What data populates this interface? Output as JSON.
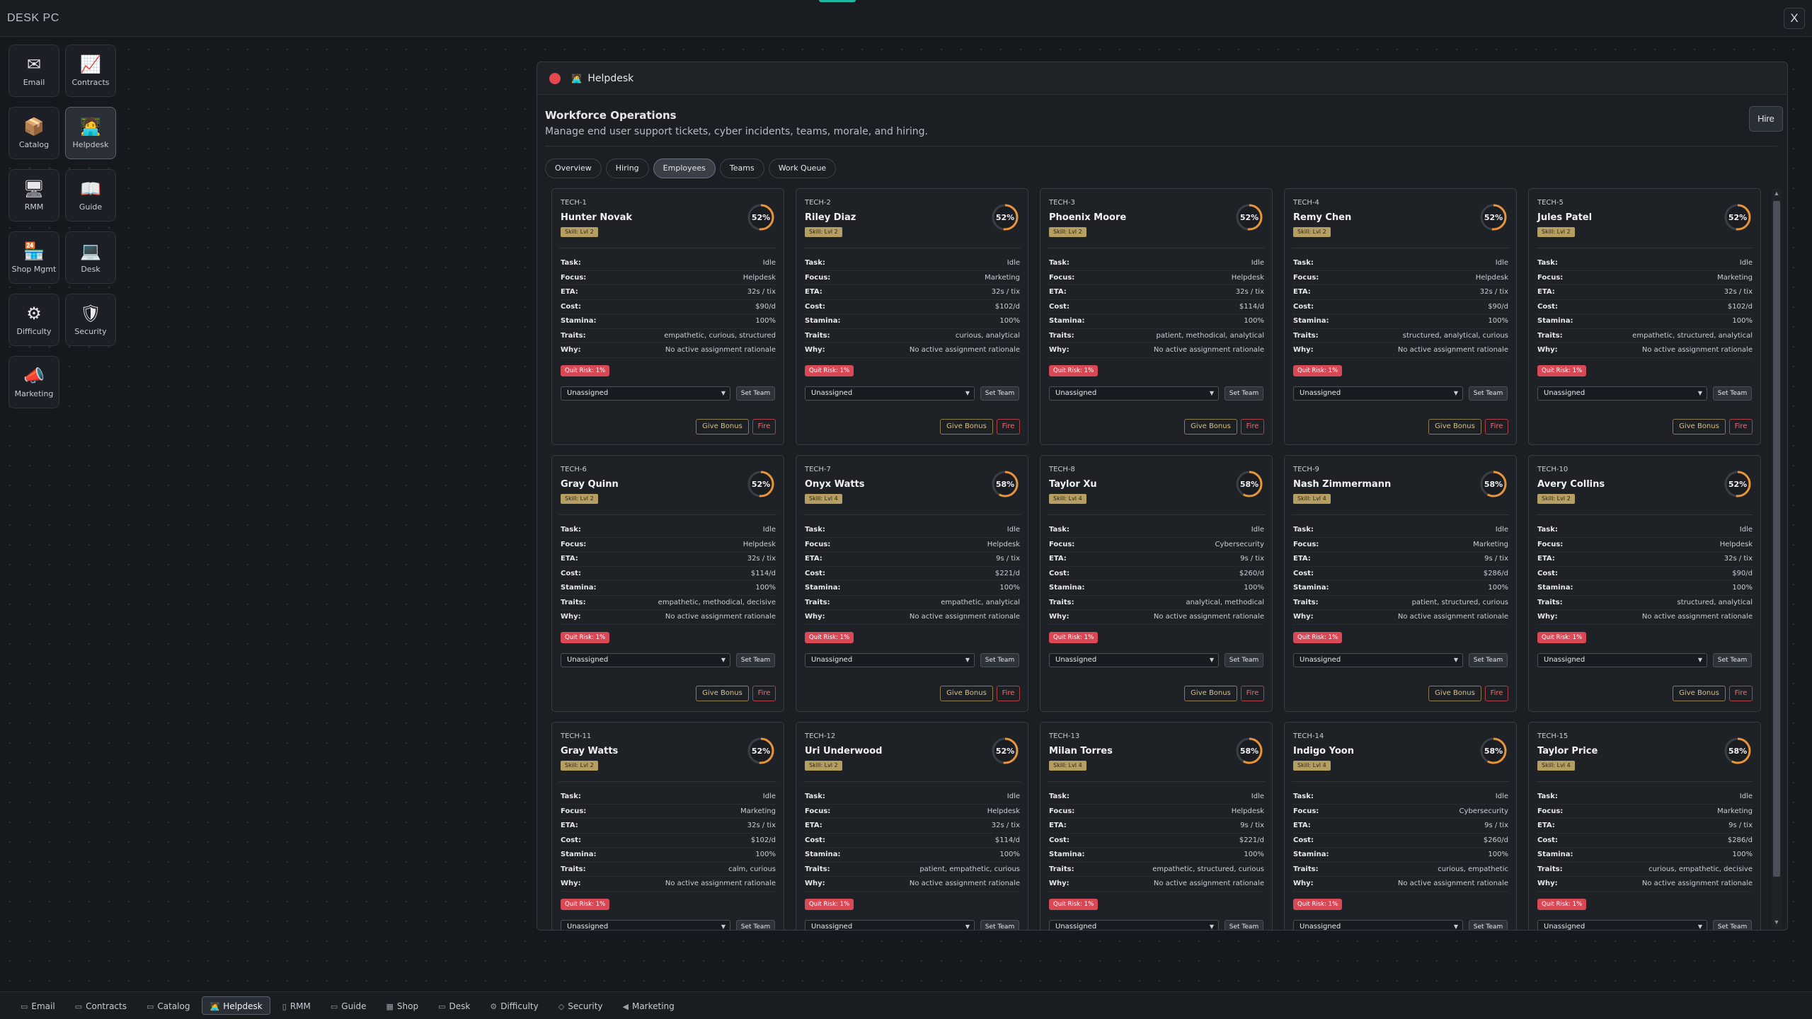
{
  "topbar": {
    "title": "DESK PC",
    "close_label": "X"
  },
  "desktop_icons": [
    {
      "label": "Email",
      "glyph": "✉",
      "icon": "email-icon"
    },
    {
      "label": "Contracts",
      "glyph": "📈",
      "icon": "contracts-icon"
    },
    {
      "label": "Catalog",
      "glyph": "📦",
      "icon": "catalog-icon"
    },
    {
      "label": "Helpdesk",
      "glyph": "🧑‍💻",
      "icon": "helpdesk-icon",
      "active": true
    },
    {
      "label": "RMM",
      "glyph": "🖥",
      "icon": "rmm-icon"
    },
    {
      "label": "Guide",
      "glyph": "📖",
      "icon": "guide-icon"
    },
    {
      "label": "Shop Mgmt",
      "glyph": "🏪",
      "icon": "shop-icon"
    },
    {
      "label": "Desk",
      "glyph": "💻",
      "icon": "desk-icon"
    },
    {
      "label": "Difficulty",
      "glyph": "⚙",
      "icon": "gear-icon"
    },
    {
      "label": "Security",
      "glyph": "🛡",
      "icon": "shield-icon"
    },
    {
      "label": "Marketing",
      "glyph": "📣",
      "icon": "megaphone-icon"
    }
  ],
  "window": {
    "title": "Helpdesk",
    "title_glyph": "🧑‍💻",
    "heading": "Workforce Operations",
    "subheading": "Manage end user support tickets, cyber incidents, teams, morale, and hiring.",
    "hire_label": "Hire",
    "tabs": [
      "Overview",
      "Hiring",
      "Employees",
      "Teams",
      "Work Queue"
    ],
    "active_tab": "Employees"
  },
  "field_labels": {
    "task": "Task:",
    "focus": "Focus:",
    "eta": "ETA:",
    "cost": "Cost:",
    "stamina": "Stamina:",
    "traits": "Traits:",
    "why": "Why:"
  },
  "card_buttons": {
    "set_team": "Set Team",
    "give_bonus": "Give Bonus",
    "fire": "Fire"
  },
  "accent_colors": {
    "ring": "#e8943a",
    "skill": "#b59e62",
    "quit": "#d94855",
    "fire": "#ef6b73"
  },
  "employees": [
    {
      "id": "TECH-1",
      "name": "Hunter Novak",
      "skill": "Skill: Lvl 2",
      "pct": "52%",
      "pct_value": 52,
      "task": "Idle",
      "focus": "Helpdesk",
      "eta": "32s / tix",
      "cost": "$90/d",
      "stamina": "100%",
      "traits": "empathetic, curious, structured",
      "why": "No active assignment rationale",
      "quit": "Quit Risk: 1%",
      "team": "Unassigned"
    },
    {
      "id": "TECH-2",
      "name": "Riley Diaz",
      "skill": "Skill: Lvl 2",
      "pct": "52%",
      "pct_value": 52,
      "task": "Idle",
      "focus": "Marketing",
      "eta": "32s / tix",
      "cost": "$102/d",
      "stamina": "100%",
      "traits": "curious, analytical",
      "why": "No active assignment rationale",
      "quit": "Quit Risk: 1%",
      "team": "Unassigned"
    },
    {
      "id": "TECH-3",
      "name": "Phoenix Moore",
      "skill": "Skill: Lvl 2",
      "pct": "52%",
      "pct_value": 52,
      "task": "Idle",
      "focus": "Helpdesk",
      "eta": "32s / tix",
      "cost": "$114/d",
      "stamina": "100%",
      "traits": "patient, methodical, analytical",
      "why": "No active assignment rationale",
      "quit": "Quit Risk: 1%",
      "team": "Unassigned"
    },
    {
      "id": "TECH-4",
      "name": "Remy Chen",
      "skill": "Skill: Lvl 2",
      "pct": "52%",
      "pct_value": 52,
      "task": "Idle",
      "focus": "Helpdesk",
      "eta": "32s / tix",
      "cost": "$90/d",
      "stamina": "100%",
      "traits": "structured, analytical, curious",
      "why": "No active assignment rationale",
      "quit": "Quit Risk: 1%",
      "team": "Unassigned"
    },
    {
      "id": "TECH-5",
      "name": "Jules Patel",
      "skill": "Skill: Lvl 2",
      "pct": "52%",
      "pct_value": 52,
      "task": "Idle",
      "focus": "Marketing",
      "eta": "32s / tix",
      "cost": "$102/d",
      "stamina": "100%",
      "traits": "empathetic, structured, analytical",
      "why": "No active assignment rationale",
      "quit": "Quit Risk: 1%",
      "team": "Unassigned"
    },
    {
      "id": "TECH-6",
      "name": "Gray Quinn",
      "skill": "Skill: Lvl 2",
      "pct": "52%",
      "pct_value": 52,
      "task": "Idle",
      "focus": "Helpdesk",
      "eta": "32s / tix",
      "cost": "$114/d",
      "stamina": "100%",
      "traits": "empathetic, methodical, decisive",
      "why": "No active assignment rationale",
      "quit": "Quit Risk: 1%",
      "team": "Unassigned"
    },
    {
      "id": "TECH-7",
      "name": "Onyx Watts",
      "skill": "Skill: Lvl 4",
      "pct": "58%",
      "pct_value": 58,
      "task": "Idle",
      "focus": "Helpdesk",
      "eta": "9s / tix",
      "cost": "$221/d",
      "stamina": "100%",
      "traits": "empathetic, analytical",
      "why": "No active assignment rationale",
      "quit": "Quit Risk: 1%",
      "team": "Unassigned"
    },
    {
      "id": "TECH-8",
      "name": "Taylor Xu",
      "skill": "Skill: Lvl 4",
      "pct": "58%",
      "pct_value": 58,
      "task": "Idle",
      "focus": "Cybersecurity",
      "eta": "9s / tix",
      "cost": "$260/d",
      "stamina": "100%",
      "traits": "analytical, methodical",
      "why": "No active assignment rationale",
      "quit": "Quit Risk: 1%",
      "team": "Unassigned"
    },
    {
      "id": "TECH-9",
      "name": "Nash Zimmermann",
      "skill": "Skill: Lvl 4",
      "pct": "58%",
      "pct_value": 58,
      "task": "Idle",
      "focus": "Marketing",
      "eta": "9s / tix",
      "cost": "$286/d",
      "stamina": "100%",
      "traits": "patient, structured, curious",
      "why": "No active assignment rationale",
      "quit": "Quit Risk: 1%",
      "team": "Unassigned"
    },
    {
      "id": "TECH-10",
      "name": "Avery Collins",
      "skill": "Skill: Lvl 2",
      "pct": "52%",
      "pct_value": 52,
      "task": "Idle",
      "focus": "Helpdesk",
      "eta": "32s / tix",
      "cost": "$90/d",
      "stamina": "100%",
      "traits": "structured, analytical",
      "why": "No active assignment rationale",
      "quit": "Quit Risk: 1%",
      "team": "Unassigned"
    },
    {
      "id": "TECH-11",
      "name": "Gray Watts",
      "skill": "Skill: Lvl 2",
      "pct": "52%",
      "pct_value": 52,
      "task": "Idle",
      "focus": "Marketing",
      "eta": "32s / tix",
      "cost": "$102/d",
      "stamina": "100%",
      "traits": "calm, curious",
      "why": "No active assignment rationale",
      "quit": "Quit Risk: 1%",
      "team": "Unassigned"
    },
    {
      "id": "TECH-12",
      "name": "Uri Underwood",
      "skill": "Skill: Lvl 2",
      "pct": "52%",
      "pct_value": 52,
      "task": "Idle",
      "focus": "Helpdesk",
      "eta": "32s / tix",
      "cost": "$114/d",
      "stamina": "100%",
      "traits": "patient, empathetic, curious",
      "why": "No active assignment rationale",
      "quit": "Quit Risk: 1%",
      "team": "Unassigned"
    },
    {
      "id": "TECH-13",
      "name": "Milan Torres",
      "skill": "Skill: Lvl 4",
      "pct": "58%",
      "pct_value": 58,
      "task": "Idle",
      "focus": "Helpdesk",
      "eta": "9s / tix",
      "cost": "$221/d",
      "stamina": "100%",
      "traits": "empathetic, structured, curious",
      "why": "No active assignment rationale",
      "quit": "Quit Risk: 1%",
      "team": "Unassigned"
    },
    {
      "id": "TECH-14",
      "name": "Indigo Yoon",
      "skill": "Skill: Lvl 4",
      "pct": "58%",
      "pct_value": 58,
      "task": "Idle",
      "focus": "Cybersecurity",
      "eta": "9s / tix",
      "cost": "$260/d",
      "stamina": "100%",
      "traits": "curious, empathetic",
      "why": "No active assignment rationale",
      "quit": "Quit Risk: 1%",
      "team": "Unassigned"
    },
    {
      "id": "TECH-15",
      "name": "Taylor Price",
      "skill": "Skill: Lvl 4",
      "pct": "58%",
      "pct_value": 58,
      "task": "Idle",
      "focus": "Marketing",
      "eta": "9s / tix",
      "cost": "$286/d",
      "stamina": "100%",
      "traits": "curious, empathetic, decisive",
      "why": "No active assignment rationale",
      "quit": "Quit Risk: 1%",
      "team": "Unassigned"
    }
  ],
  "taskbar": [
    {
      "label": "Email",
      "glyph": "▭"
    },
    {
      "label": "Contracts",
      "glyph": "▭"
    },
    {
      "label": "Catalog",
      "glyph": "▭"
    },
    {
      "label": "Helpdesk",
      "glyph": "🧑‍💻",
      "active": true
    },
    {
      "label": "RMM",
      "glyph": "▯"
    },
    {
      "label": "Guide",
      "glyph": "▭"
    },
    {
      "label": "Shop",
      "glyph": "▦"
    },
    {
      "label": "Desk",
      "glyph": "▭"
    },
    {
      "label": "Difficulty",
      "glyph": "⚙"
    },
    {
      "label": "Security",
      "glyph": "◇"
    },
    {
      "label": "Marketing",
      "glyph": "◀"
    }
  ]
}
